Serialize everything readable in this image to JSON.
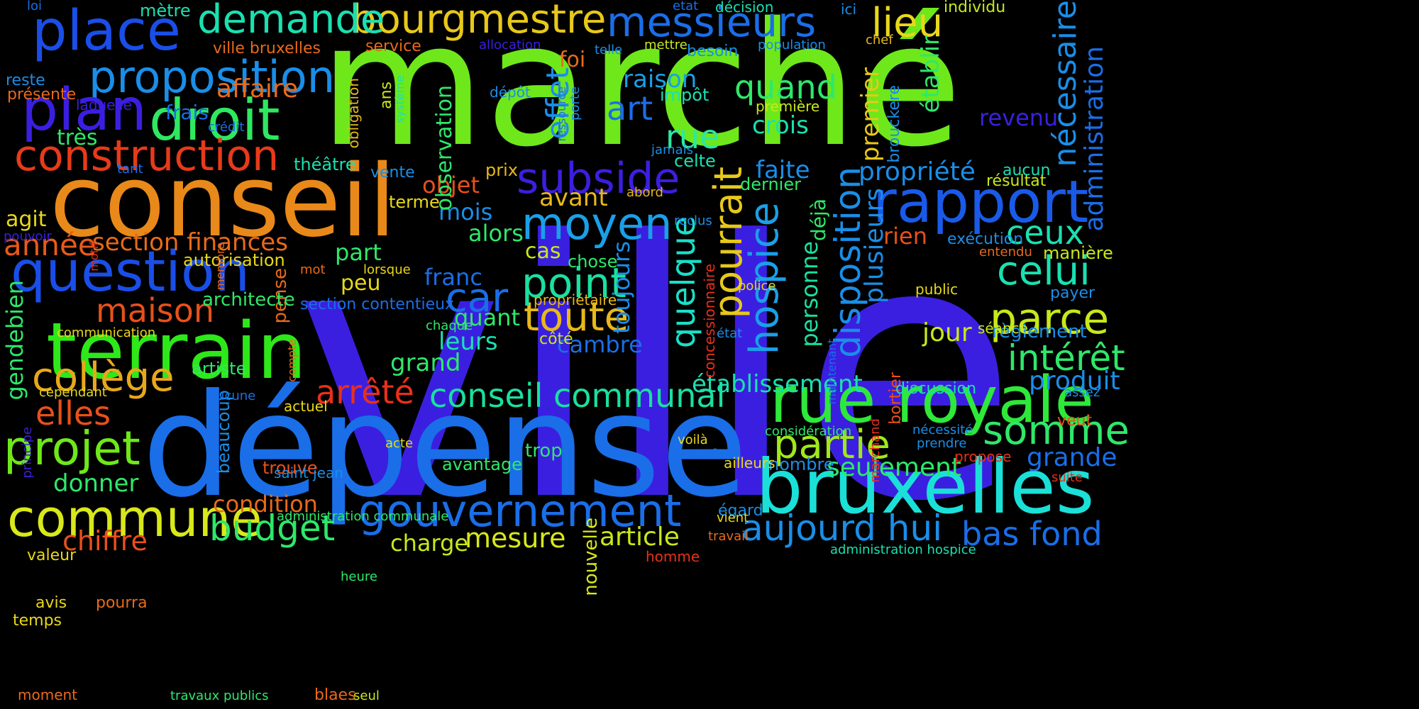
{
  "words": [
    {
      "text": "ville",
      "color": "#3b1fe0"
    },
    {
      "text": "marché",
      "color": "#6ee81a"
    },
    {
      "text": "dépense",
      "color": "#1a6ee8"
    },
    {
      "text": "conseil",
      "color": "#e8891a"
    },
    {
      "text": "bruxelles",
      "color": "#1ae0d8"
    },
    {
      "text": "terrain",
      "color": "#2ee81a"
    },
    {
      "text": "question",
      "color": "#1a4ee8"
    },
    {
      "text": "rue royale",
      "color": "#2ee83a"
    },
    {
      "text": "gouvernement",
      "color": "#1a6ee8"
    },
    {
      "text": "commune",
      "color": "#d8e81a"
    },
    {
      "text": "rapport",
      "color": "#1a5ae8"
    },
    {
      "text": "droit",
      "color": "#2ee860"
    },
    {
      "text": "place",
      "color": "#1a4ee8"
    },
    {
      "text": "bourgmestre",
      "color": "#e8c81a"
    },
    {
      "text": "messieurs",
      "color": "#1a6ee8"
    },
    {
      "text": "proposition",
      "color": "#1a8ee8"
    },
    {
      "text": "construction",
      "color": "#e83a1a"
    },
    {
      "text": "plan",
      "color": "#3b1fe0"
    },
    {
      "text": "demande",
      "color": "#1ae0b0"
    },
    {
      "text": "conseil communal",
      "color": "#1ae0a0"
    },
    {
      "text": "projet",
      "color": "#6ee81a"
    },
    {
      "text": "subside",
      "color": "#3b1fe0"
    },
    {
      "text": "collège",
      "color": "#e8a81a"
    },
    {
      "text": "moyen",
      "color": "#1aa0e8"
    },
    {
      "text": "partie",
      "color": "#a0e81a"
    },
    {
      "text": "somme",
      "color": "#2ee86a"
    },
    {
      "text": "parce",
      "color": "#c8e81a"
    },
    {
      "text": "celui",
      "color": "#1ae0b0"
    },
    {
      "text": "lieu",
      "color": "#e8d81a"
    },
    {
      "text": "toute",
      "color": "#e8b81a"
    },
    {
      "text": "pourrait",
      "color": "#e8c81a"
    },
    {
      "text": "point",
      "color": "#1ae0a0"
    },
    {
      "text": "quelque",
      "color": "#1ae0c8"
    },
    {
      "text": "hospice",
      "color": "#1aa0e8"
    },
    {
      "text": "disposition",
      "color": "#1a8ee8"
    },
    {
      "text": "aujourd hui",
      "color": "#1a8ee8"
    },
    {
      "text": "bas fond",
      "color": "#1a6ee8"
    },
    {
      "text": "nécessaire",
      "color": "#1a8ee8"
    },
    {
      "text": "administration",
      "color": "#1a6ee8"
    },
    {
      "text": "intérêt",
      "color": "#2ee86a"
    },
    {
      "text": "budget",
      "color": "#2ee86a"
    },
    {
      "text": "maison",
      "color": "#e8501a"
    },
    {
      "text": "arrêté",
      "color": "#e8301a"
    },
    {
      "text": "elles",
      "color": "#e8501a"
    },
    {
      "text": "car",
      "color": "#1a6ee8"
    },
    {
      "text": "quand",
      "color": "#2ee86a"
    },
    {
      "text": "art",
      "color": "#1a6ee8"
    },
    {
      "text": "rue",
      "color": "#2ee8a0"
    },
    {
      "text": "effet",
      "color": "#1a8ee8"
    },
    {
      "text": "année",
      "color": "#e85a1a"
    },
    {
      "text": "ceux",
      "color": "#1ae0b0"
    },
    {
      "text": "grande",
      "color": "#1a6ee8"
    },
    {
      "text": "produit",
      "color": "#1a8ee8"
    },
    {
      "text": "mesure",
      "color": "#d8e81a"
    },
    {
      "text": "chiffre",
      "color": "#e8501a"
    },
    {
      "text": "article",
      "color": "#c8e81a"
    },
    {
      "text": "seulement",
      "color": "#2ee86a"
    },
    {
      "text": "établissement",
      "color": "#1ae0b0"
    },
    {
      "text": "section finances",
      "color": "#e86a1a"
    },
    {
      "text": "affaire",
      "color": "#e86a1a"
    },
    {
      "text": "jour",
      "color": "#c8e81a"
    },
    {
      "text": "propriété",
      "color": "#1a8ee8"
    },
    {
      "text": "plusieurs",
      "color": "#1a8ee8"
    },
    {
      "text": "personne",
      "color": "#1ae0a0"
    },
    {
      "text": "premier",
      "color": "#e8c81a"
    },
    {
      "text": "revenu",
      "color": "#3b1fe0"
    },
    {
      "text": "établir",
      "color": "#2ee86a"
    },
    {
      "text": "faite",
      "color": "#1a8ee8"
    },
    {
      "text": "crois",
      "color": "#1ae0b0"
    },
    {
      "text": "raison",
      "color": "#1aa0e8"
    },
    {
      "text": "avant",
      "color": "#e8b81a"
    },
    {
      "text": "leurs",
      "color": "#1ae0b0"
    },
    {
      "text": "grand",
      "color": "#2ee86a"
    },
    {
      "text": "cambre",
      "color": "#1a6ee8"
    },
    {
      "text": "quant",
      "color": "#2ee86a"
    },
    {
      "text": "toujours",
      "color": "#1a8ee8"
    },
    {
      "text": "franc",
      "color": "#1a6ee8"
    },
    {
      "text": "donner",
      "color": "#2ee86a"
    },
    {
      "text": "condition",
      "color": "#e86a1a"
    },
    {
      "text": "charge",
      "color": "#c8e81a"
    },
    {
      "text": "objet",
      "color": "#e8501a"
    },
    {
      "text": "mois",
      "color": "#1a8ee8"
    },
    {
      "text": "alors",
      "color": "#2ee86a"
    },
    {
      "text": "part",
      "color": "#2ee86a"
    },
    {
      "text": "cas",
      "color": "#c8e81a"
    },
    {
      "text": "observation",
      "color": "#2ee86a"
    },
    {
      "text": "foi",
      "color": "#e86a1a"
    },
    {
      "text": "rien",
      "color": "#e8501a"
    },
    {
      "text": "déjà",
      "color": "#2ee86a"
    },
    {
      "text": "gendebien",
      "color": "#2ee86a"
    },
    {
      "text": "trouve",
      "color": "#e8501a"
    },
    {
      "text": "avantage",
      "color": "#2ee86a"
    },
    {
      "text": "très",
      "color": "#2ee86a"
    },
    {
      "text": "frais",
      "color": "#1a6ee8"
    },
    {
      "text": "agit",
      "color": "#e8d81a"
    },
    {
      "text": "autorisation",
      "color": "#e8d81a"
    },
    {
      "text": "peu",
      "color": "#e8d81a"
    },
    {
      "text": "pense",
      "color": "#e86a1a"
    },
    {
      "text": "architecte",
      "color": "#2ee86a"
    },
    {
      "text": "artiste",
      "color": "#2ee86a"
    },
    {
      "text": "dernier",
      "color": "#2ee86a"
    },
    {
      "text": "celte",
      "color": "#1ae0b0"
    },
    {
      "text": "impôt",
      "color": "#1ae0b0"
    },
    {
      "text": "prix",
      "color": "#e8b81a"
    },
    {
      "text": "terme",
      "color": "#e8d81a"
    },
    {
      "text": "vente",
      "color": "#1a8ee8"
    },
    {
      "text": "théâtre",
      "color": "#1ae0b0"
    },
    {
      "text": "nouvelle",
      "color": "#d8e81a"
    },
    {
      "text": "beaucoup",
      "color": "#1a8ee8"
    },
    {
      "text": "trop",
      "color": "#2ee86a"
    },
    {
      "text": "nombre",
      "color": "#1a8ee8"
    },
    {
      "text": "côté",
      "color": "#c8e81a"
    },
    {
      "text": "chose",
      "color": "#2ee86a"
    },
    {
      "text": "propriétaire",
      "color": "#e8b81a"
    },
    {
      "text": "manière",
      "color": "#c8e81a"
    },
    {
      "text": "payer",
      "color": "#1a8ee8"
    },
    {
      "text": "règlement",
      "color": "#1a8ee8"
    },
    {
      "text": "séance",
      "color": "#c8e81a"
    },
    {
      "text": "public",
      "color": "#e8d81a"
    },
    {
      "text": "résultat",
      "color": "#c8e81a"
    },
    {
      "text": "aucun",
      "color": "#1ae0b0"
    },
    {
      "text": "exécution",
      "color": "#1a8ee8"
    },
    {
      "text": "entendu",
      "color": "#e86a1a"
    },
    {
      "text": "brouckere",
      "color": "#1a8ee8"
    },
    {
      "text": "première",
      "color": "#c8e81a"
    },
    {
      "text": "bortier",
      "color": "#e8501a"
    },
    {
      "text": "discussion",
      "color": "#1ae0b0"
    },
    {
      "text": "veut",
      "color": "#e8501a"
    },
    {
      "text": "assez",
      "color": "#1a8ee8"
    },
    {
      "text": "considération",
      "color": "#2ee86a"
    },
    {
      "text": "nécessité",
      "color": "#1a8ee8"
    },
    {
      "text": "prendre",
      "color": "#1a8ee8"
    },
    {
      "text": "propose",
      "color": "#e8301a"
    },
    {
      "text": "suite",
      "color": "#e8301a"
    },
    {
      "text": "égard",
      "color": "#1a8ee8"
    },
    {
      "text": "ailleurs",
      "color": "#e8d81a"
    },
    {
      "text": "travail",
      "color": "#e86a1a"
    },
    {
      "text": "administration hospice",
      "color": "#1ae0b0"
    },
    {
      "text": "individu",
      "color": "#c8e81a"
    },
    {
      "text": "chef",
      "color": "#e8b81a"
    },
    {
      "text": "ici",
      "color": "#1a8ee8"
    },
    {
      "text": "décision",
      "color": "#1ae0b0"
    },
    {
      "text": "etat",
      "color": "#1a6ee8"
    },
    {
      "text": "population",
      "color": "#1a8ee8"
    },
    {
      "text": "besoin",
      "color": "#1a8ee8"
    },
    {
      "text": "mettre",
      "color": "#c8e81a"
    },
    {
      "text": "telle",
      "color": "#1a8ee8"
    },
    {
      "text": "allocation",
      "color": "#3b1fe0"
    },
    {
      "text": "dépôt",
      "color": "#1a8ee8"
    },
    {
      "text": "jamais",
      "color": "#1a8ee8"
    },
    {
      "text": "reclus",
      "color": "#1a8ee8"
    },
    {
      "text": "abord",
      "color": "#e8b81a"
    },
    {
      "text": "porte",
      "color": "#1a8ee8"
    },
    {
      "text": "ressource",
      "color": "#1a6ee8"
    },
    {
      "text": "système",
      "color": "#1ae0b0"
    },
    {
      "text": "ans",
      "color": "#c8e81a"
    },
    {
      "text": "obligation",
      "color": "#e8b81a"
    },
    {
      "text": "service",
      "color": "#e86a1a"
    },
    {
      "text": "ville bruxelles",
      "color": "#e86a1a"
    },
    {
      "text": "mètre",
      "color": "#1ae0b0"
    },
    {
      "text": "loi",
      "color": "#1a6ee8"
    },
    {
      "text": "reste",
      "color": "#1a8ee8"
    },
    {
      "text": "présente",
      "color": "#e86a1a"
    },
    {
      "text": "laquelle",
      "color": "#3b1fe0"
    },
    {
      "text": "crédit",
      "color": "#1a6ee8"
    },
    {
      "text": "tant",
      "color": "#1a6ee8"
    },
    {
      "text": "pouvoir",
      "color": "#3b1fe0"
    },
    {
      "text": "motif",
      "color": "#e8301a"
    },
    {
      "text": "membre",
      "color": "#e86a1a"
    },
    {
      "text": "mot",
      "color": "#e86a1a"
    },
    {
      "text": "lorsque",
      "color": "#e8d81a"
    },
    {
      "text": "section contentieux",
      "color": "#1a6ee8"
    },
    {
      "text": "chaque",
      "color": "#2ee86a"
    },
    {
      "text": "communication",
      "color": "#e8d81a"
    },
    {
      "text": "cependant",
      "color": "#e8d81a"
    },
    {
      "text": "aucune",
      "color": "#1a6ee8"
    },
    {
      "text": "actuel",
      "color": "#e8d81a"
    },
    {
      "text": "compte",
      "color": "#e86a1a"
    },
    {
      "text": "principe",
      "color": "#3b1fe0"
    },
    {
      "text": "acte",
      "color": "#e8d81a"
    },
    {
      "text": "saint jean",
      "color": "#1a8ee8"
    },
    {
      "text": "administration communale",
      "color": "#2ee86a"
    },
    {
      "text": "valeur",
      "color": "#e8d81a"
    },
    {
      "text": "avis",
      "color": "#e8d81a"
    },
    {
      "text": "pourra",
      "color": "#e86a1a"
    },
    {
      "text": "temps",
      "color": "#e8d81a"
    },
    {
      "text": "heure",
      "color": "#2ee86a"
    },
    {
      "text": "moment",
      "color": "#e86a1a"
    },
    {
      "text": "travaux publics",
      "color": "#2ee86a"
    },
    {
      "text": "blaes",
      "color": "#e86a1a"
    },
    {
      "text": "seul",
      "color": "#c8e81a"
    },
    {
      "text": "homme",
      "color": "#e8301a"
    },
    {
      "text": "vient",
      "color": "#e8d81a"
    },
    {
      "text": "concessionnaire",
      "color": "#e8301a"
    },
    {
      "text": "police",
      "color": "#e8d81a"
    },
    {
      "text": "état",
      "color": "#1a8ee8"
    },
    {
      "text": "voilà",
      "color": "#e8d81a"
    },
    {
      "text": "fort",
      "color": "#1a6ee8"
    },
    {
      "text": "maintenant",
      "color": "#1a6ee8"
    },
    {
      "text": "marchand",
      "color": "#e8301a"
    }
  ]
}
